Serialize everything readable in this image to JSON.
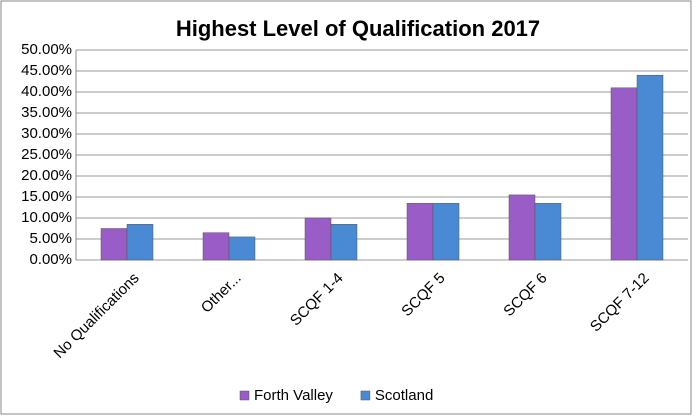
{
  "chart_data": {
    "type": "bar",
    "title": "Highest Level of Qualification 2017",
    "categories": [
      "No Qualifications",
      "Other...",
      "SCQF 1-4",
      "SCQF 5",
      "SCQF 6",
      "SCQF 7-12"
    ],
    "series": [
      {
        "name": "Forth Valley",
        "color": "#9a5cc6",
        "values": [
          7.5,
          6.5,
          10,
          13.5,
          15.5,
          41
        ]
      },
      {
        "name": "Scotland",
        "color": "#4a8ad4",
        "values": [
          8.5,
          5.5,
          8.5,
          13.5,
          13.5,
          44
        ]
      }
    ],
    "ylim": [
      0,
      50
    ],
    "yticks": [
      {
        "value": 0,
        "label": "0.00%"
      },
      {
        "value": 5,
        "label": "5.00%"
      },
      {
        "value": 10,
        "label": "10.00%"
      },
      {
        "value": 15,
        "label": "15.00%"
      },
      {
        "value": 20,
        "label": "20.00%"
      },
      {
        "value": 25,
        "label": "25.00%"
      },
      {
        "value": 30,
        "label": "30.00%"
      },
      {
        "value": 35,
        "label": "35.00%"
      },
      {
        "value": 40,
        "label": "40.00%"
      },
      {
        "value": 45,
        "label": "45.00%"
      },
      {
        "value": 50,
        "label": "50.00%"
      }
    ],
    "grid": true,
    "legend": "bottom"
  }
}
